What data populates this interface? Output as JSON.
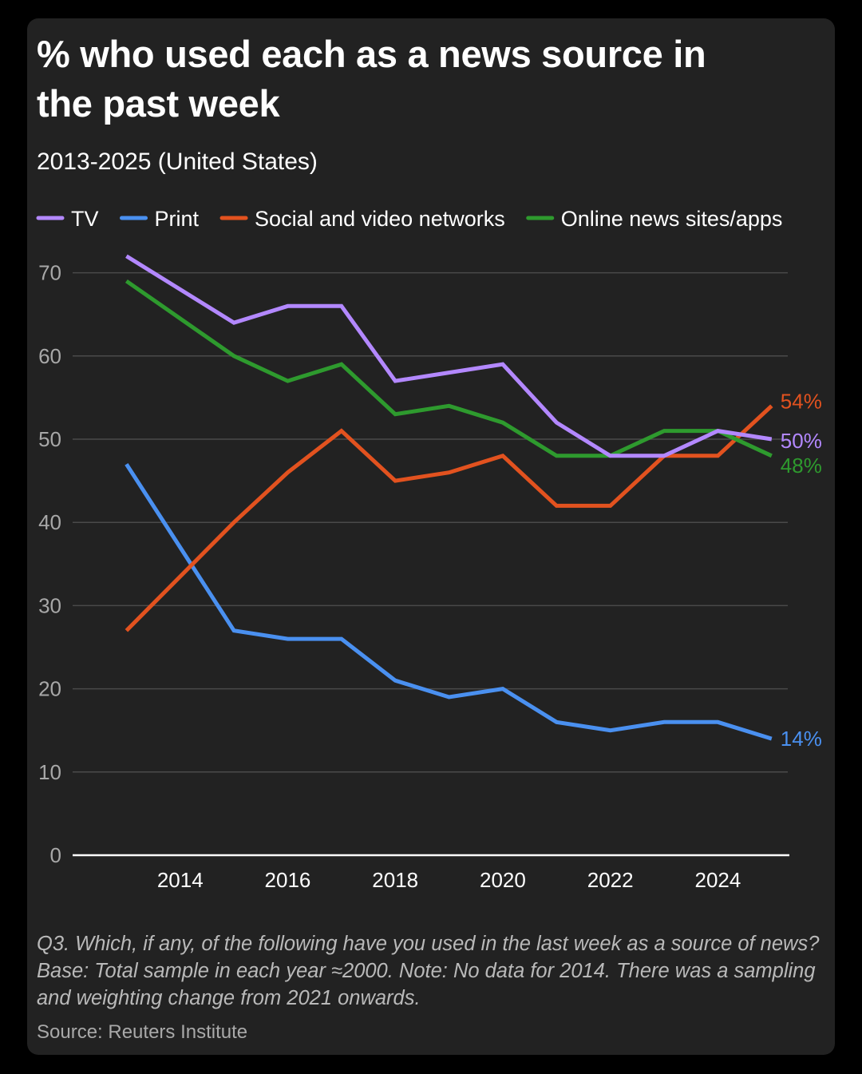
{
  "title": "% who used each as a news source in the past week",
  "subtitle": "2013-2025 (United States)",
  "note": "Q3. Which, if any, of the following have you used in the last week as a source of news? Base: Total sample in each year ≈2000. Note: No data for 2014. There was a sampling and weighting change from 2021 onwards.",
  "source": "Source: Reuters Institute",
  "colors": {
    "background": "#222222",
    "gridline": "#4a4a4a",
    "axis": "#ffffff"
  },
  "chart_data": {
    "type": "line",
    "legend_position": "top",
    "grid": true,
    "x": [
      2013,
      2015,
      2016,
      2017,
      2018,
      2019,
      2020,
      2021,
      2022,
      2023,
      2024,
      2025
    ],
    "xlim": [
      2012,
      2025.3
    ],
    "x_ticks": [
      "2014",
      "2016",
      "2018",
      "2020",
      "2022",
      "2024"
    ],
    "ylim": [
      0,
      70
    ],
    "y_ticks": [
      "0",
      "10",
      "20",
      "30",
      "40",
      "50",
      "60",
      "70"
    ],
    "series": [
      {
        "name": "TV",
        "color": "#b388ff",
        "values": [
          72,
          64,
          66,
          66,
          57,
          58,
          59,
          52,
          48,
          48,
          51,
          50
        ],
        "end_label": "50%"
      },
      {
        "name": "Print",
        "color": "#4a90f0",
        "values": [
          47,
          27,
          26,
          26,
          21,
          19,
          20,
          16,
          15,
          16,
          16,
          14
        ],
        "end_label": "14%"
      },
      {
        "name": "Social and video networks",
        "color": "#e2521f",
        "values": [
          27,
          40,
          46,
          51,
          45,
          46,
          48,
          42,
          42,
          48,
          48,
          54
        ],
        "end_label": "54%"
      },
      {
        "name": "Online news sites/apps",
        "color": "#2e9a2e",
        "values": [
          69,
          60,
          57,
          59,
          53,
          54,
          52,
          48,
          48,
          51,
          51,
          48
        ],
        "end_label": "48%"
      }
    ]
  }
}
